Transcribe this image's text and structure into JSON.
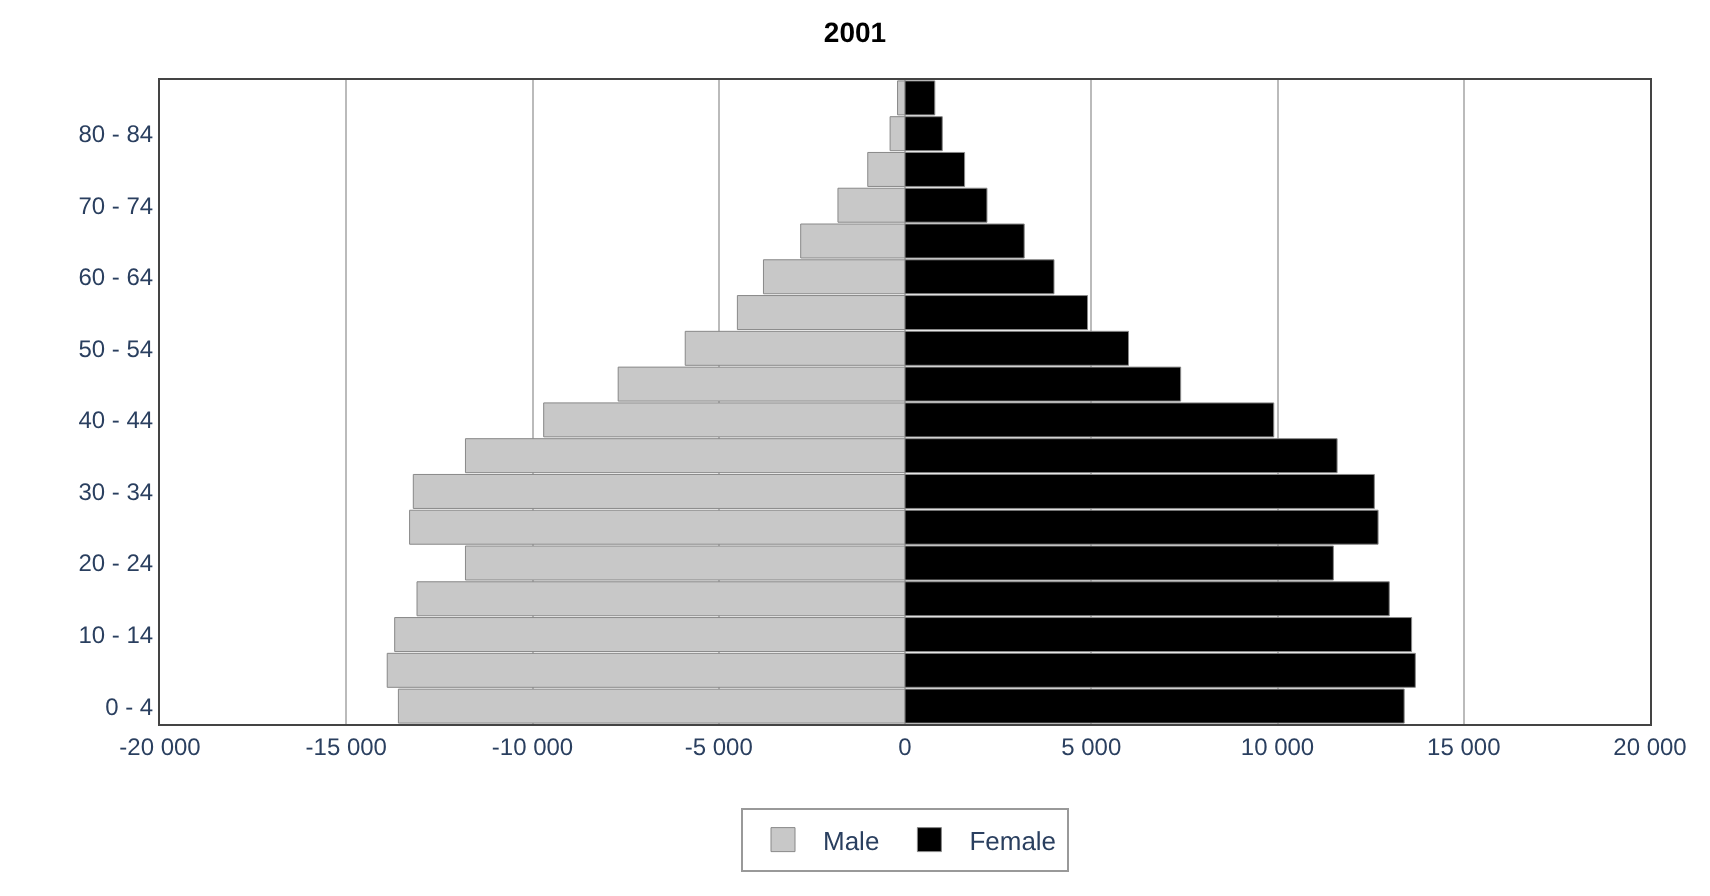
{
  "chart_data": {
    "type": "bar",
    "title": "2001",
    "orientation": "horizontal",
    "categories": [
      null,
      "80 - 84",
      null,
      "70 - 74",
      null,
      "60 - 64",
      null,
      "50 - 54",
      null,
      "40 - 44",
      null,
      "30 - 34",
      null,
      "20 - 24",
      null,
      "10 - 14",
      null,
      "0 - 4"
    ],
    "series": [
      {
        "name": "Male",
        "color": "#c8c8c8",
        "values": [
          -200,
          -400,
          -1000,
          -1800,
          -2800,
          -3800,
          -4500,
          -5900,
          -7700,
          -9700,
          -11800,
          -13200,
          -13300,
          -11800,
          -13100,
          -13700,
          -13900,
          -13600
        ]
      },
      {
        "name": "Female",
        "color": "#000000",
        "values": [
          800,
          1000,
          1600,
          2200,
          3200,
          4000,
          4900,
          6000,
          7400,
          9900,
          11600,
          12600,
          12700,
          11500,
          13000,
          13600,
          13700,
          13400
        ]
      }
    ],
    "xlim": [
      -20000,
      20000
    ],
    "xticks": [
      {
        "value": -20000,
        "label": "-20 000"
      },
      {
        "value": -15000,
        "label": "-15 000"
      },
      {
        "value": -10000,
        "label": "-10 000"
      },
      {
        "value": -5000,
        "label": "-5 000"
      },
      0,
      {
        "value": 5000,
        "label": "5 000"
      },
      {
        "value": 10000,
        "label": "10 000"
      },
      {
        "value": 15000,
        "label": "15 000"
      },
      {
        "value": 20000,
        "label": "20 000"
      }
    ],
    "grid": "x",
    "legend": "bottom",
    "stacked": true
  }
}
